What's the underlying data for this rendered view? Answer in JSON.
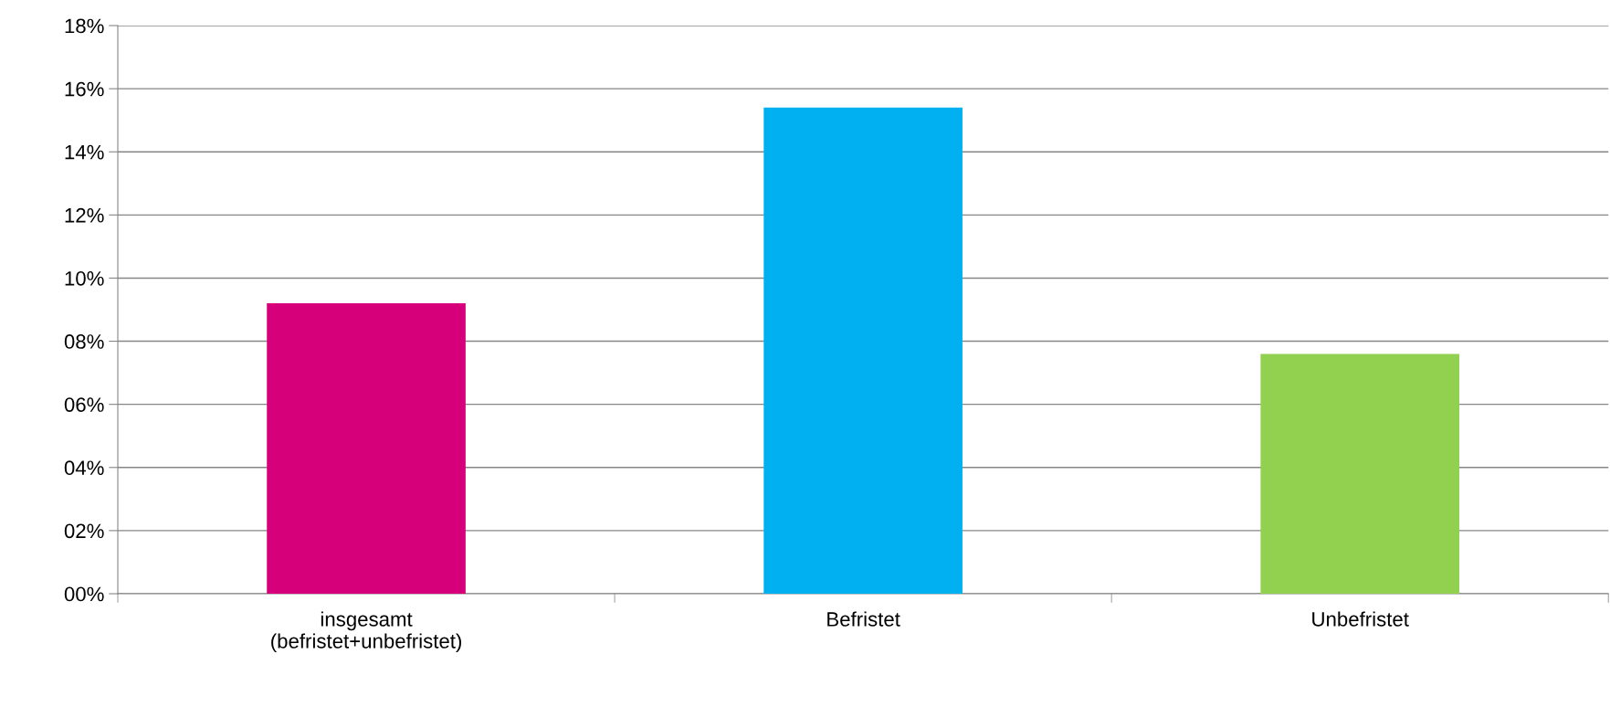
{
  "chart_data": {
    "type": "bar",
    "categories": [
      "insgesamt\n(befristet+unbefristet)",
      "Befristet",
      "Unbefristet"
    ],
    "values": [
      9.2,
      15.4,
      7.6
    ],
    "colors": [
      "#d6007b",
      "#00b0f0",
      "#92d050"
    ],
    "ylim": [
      0,
      18
    ],
    "yticks": [
      {
        "value": 0,
        "label": "00%"
      },
      {
        "value": 2,
        "label": "02%"
      },
      {
        "value": 4,
        "label": "04%"
      },
      {
        "value": 6,
        "label": "06%"
      },
      {
        "value": 8,
        "label": "08%"
      },
      {
        "value": 10,
        "label": "10%"
      },
      {
        "value": 12,
        "label": "12%"
      },
      {
        "value": 14,
        "label": "14%"
      },
      {
        "value": 16,
        "label": "16%"
      },
      {
        "value": 18,
        "label": "18%"
      }
    ],
    "grid": "y",
    "legend": false
  }
}
